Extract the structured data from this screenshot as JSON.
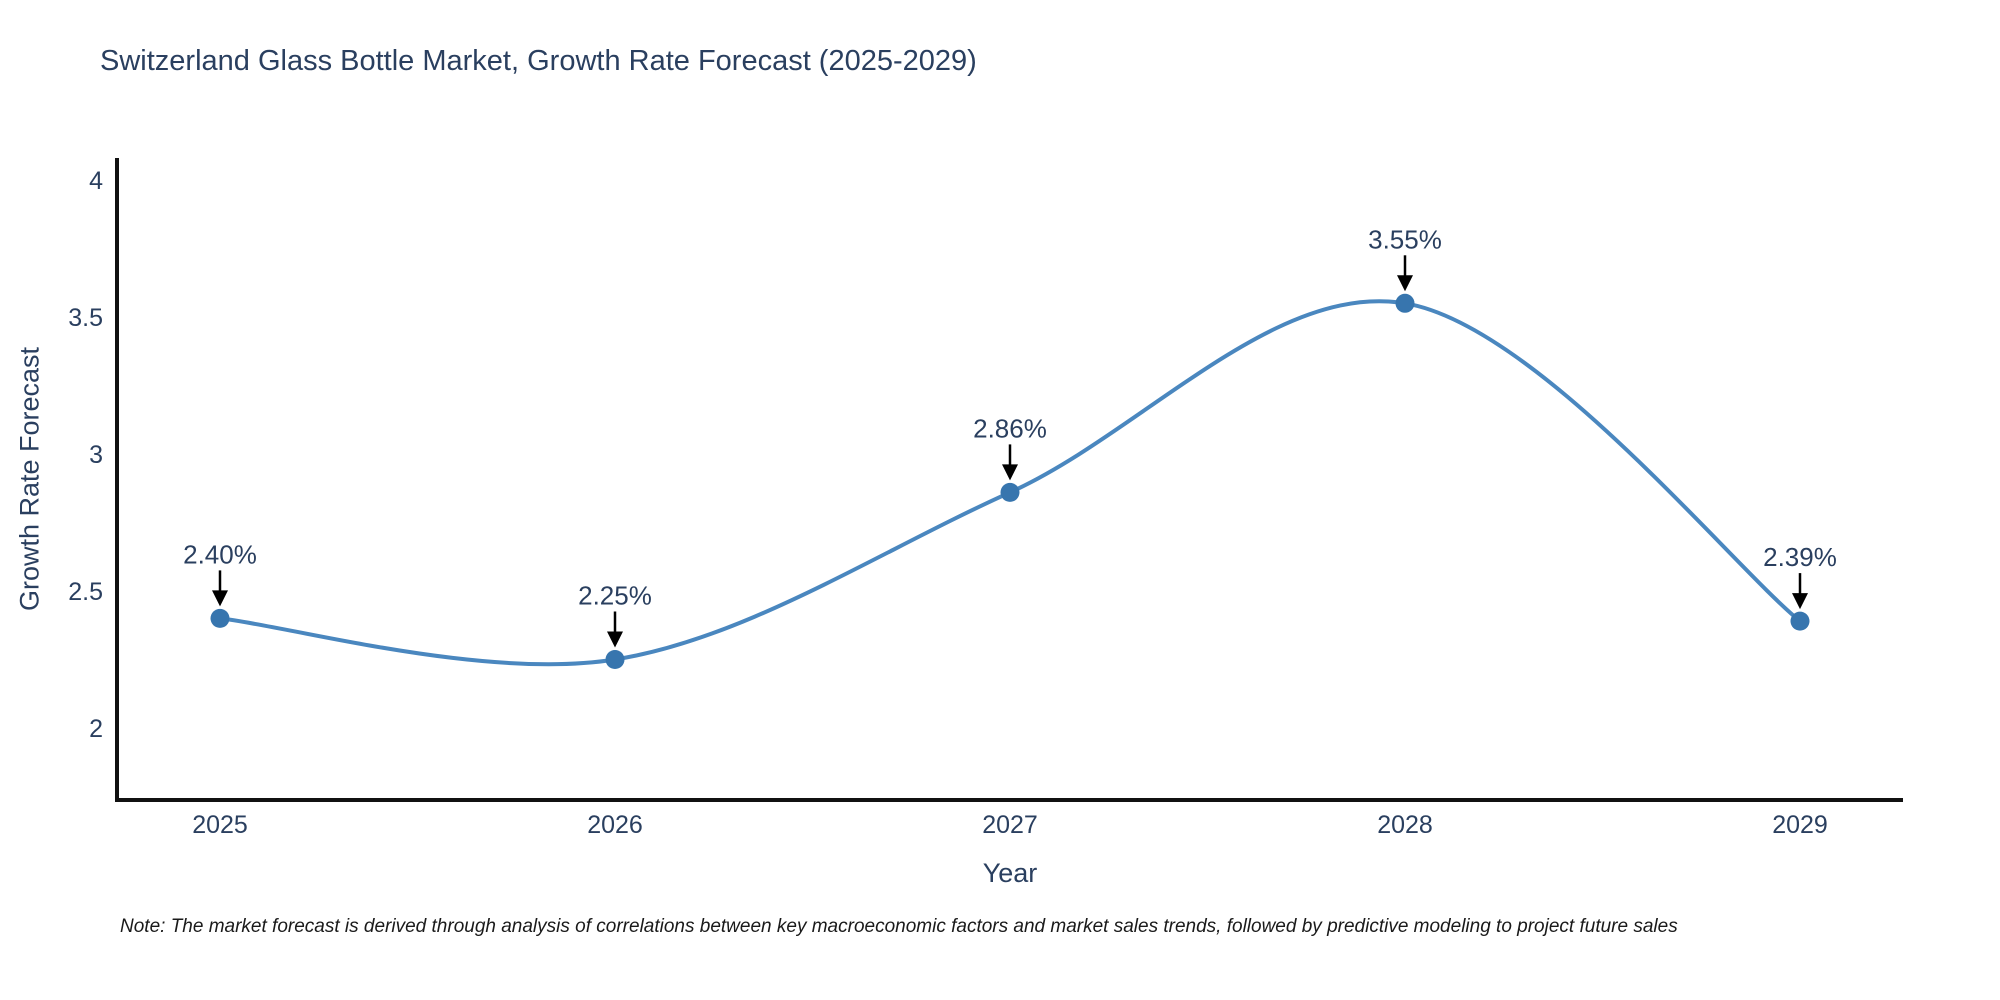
{
  "title": "Switzerland Glass Bottle Market, Growth Rate Forecast (2025-2029)",
  "note": "Note: The market forecast is derived through analysis of correlations between key macroeconomic factors and market sales trends, followed by predictive modeling to project future sales",
  "chart_data": {
    "type": "line",
    "x": [
      "2025",
      "2026",
      "2027",
      "2028",
      "2029"
    ],
    "series": [
      {
        "name": "Growth Rate Forecast",
        "values": [
          2.4,
          2.25,
          2.86,
          3.55,
          2.39
        ]
      }
    ],
    "point_labels": [
      "2.40%",
      "2.25%",
      "2.86%",
      "3.55%",
      "2.39%"
    ],
    "title": "Switzerland Glass Bottle Market, Growth Rate Forecast (2025-2029)",
    "xlabel": "Year",
    "ylabel": "Growth Rate Forecast",
    "y_ticks": [
      "2",
      "2.5",
      "3",
      "3.5",
      "4"
    ],
    "y_tick_values": [
      2,
      2.5,
      3,
      3.5,
      4
    ],
    "ylim": [
      1.74,
      4.07
    ],
    "line_shape": "spline",
    "grid": false,
    "legend": "none",
    "annotations": "value labels with downward arrows above each data point",
    "colors": {
      "line": "#4a87bf",
      "marker": "#3775ae",
      "axis": "#111111",
      "text": "#2a3f5f",
      "note_text": "#1a1a1a",
      "arrow": "#000000",
      "background": "#ffffff"
    }
  }
}
